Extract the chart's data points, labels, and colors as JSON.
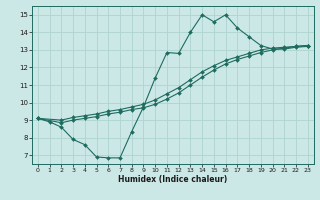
{
  "xlabel": "Humidex (Indice chaleur)",
  "bg_color": "#cce8e6",
  "line_color": "#1e6b60",
  "grid_color": "#aed4d0",
  "xlim": [
    -0.5,
    23.5
  ],
  "ylim": [
    6.5,
    15.5
  ],
  "xticks": [
    0,
    1,
    2,
    3,
    4,
    5,
    6,
    7,
    8,
    9,
    10,
    11,
    12,
    13,
    14,
    15,
    16,
    17,
    18,
    19,
    20,
    21,
    22,
    23
  ],
  "yticks": [
    7,
    8,
    9,
    10,
    11,
    12,
    13,
    14,
    15
  ],
  "line1_x": [
    0,
    1,
    2,
    3,
    4,
    5,
    6,
    7,
    8,
    9,
    10,
    11,
    12,
    13,
    14,
    15,
    16,
    17,
    18,
    19,
    20,
    21,
    22,
    23
  ],
  "line1_y": [
    9.1,
    8.9,
    8.6,
    7.9,
    7.6,
    6.9,
    6.85,
    6.85,
    8.35,
    9.75,
    11.4,
    12.85,
    12.8,
    14.0,
    15.0,
    14.6,
    15.0,
    14.25,
    13.75,
    13.25,
    13.05,
    13.05,
    13.15,
    13.2
  ],
  "line2_x": [
    0,
    2,
    3,
    4,
    5,
    6,
    7,
    8,
    9,
    10,
    11,
    12,
    13,
    14,
    15,
    16,
    17,
    18,
    19,
    20,
    21,
    22,
    23
  ],
  "line2_y": [
    9.1,
    9.0,
    9.15,
    9.25,
    9.35,
    9.5,
    9.6,
    9.75,
    9.9,
    10.15,
    10.5,
    10.85,
    11.3,
    11.75,
    12.1,
    12.4,
    12.6,
    12.8,
    13.0,
    13.1,
    13.15,
    13.2,
    13.25
  ],
  "line3_x": [
    0,
    2,
    3,
    4,
    5,
    6,
    7,
    8,
    9,
    10,
    11,
    12,
    13,
    14,
    15,
    16,
    17,
    18,
    19,
    20,
    21,
    22,
    23
  ],
  "line3_y": [
    9.1,
    8.85,
    9.0,
    9.1,
    9.2,
    9.35,
    9.45,
    9.6,
    9.7,
    9.9,
    10.2,
    10.55,
    11.0,
    11.45,
    11.85,
    12.2,
    12.45,
    12.65,
    12.85,
    13.0,
    13.1,
    13.2,
    13.25
  ]
}
